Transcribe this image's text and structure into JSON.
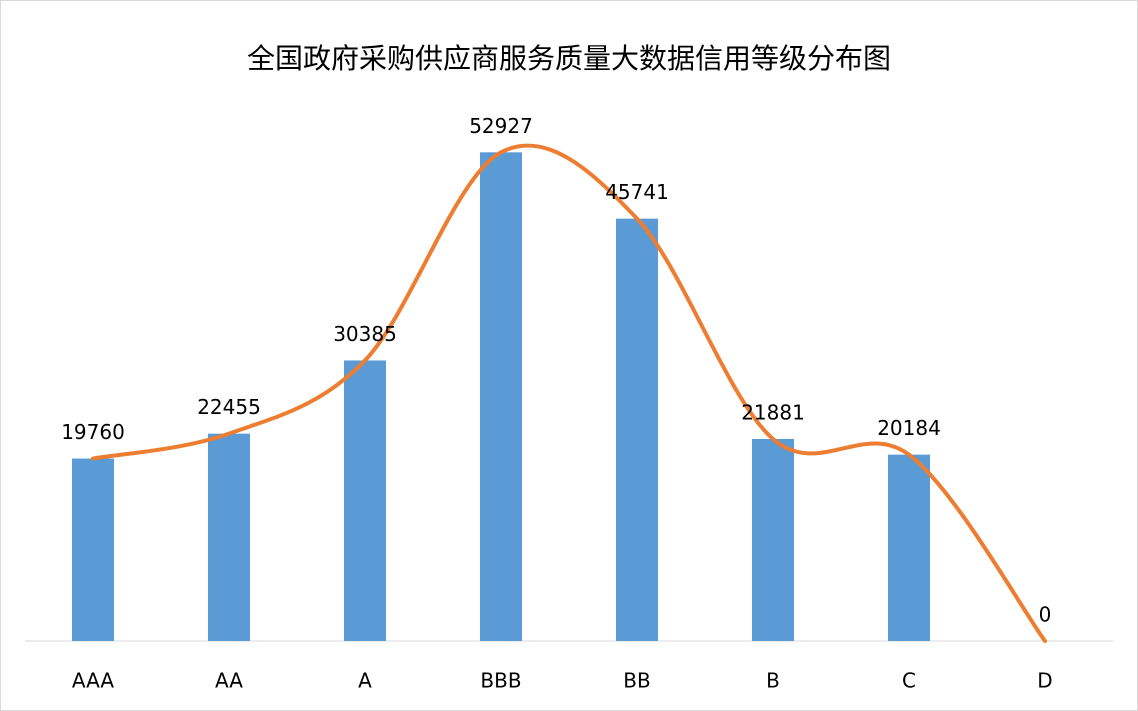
{
  "chart_data": {
    "type": "combo",
    "title": "全国政府采购供应商服务质量大数据信用等级分布图",
    "categories": [
      "AAA",
      "AA",
      "A",
      "BBB",
      "BB",
      "B",
      "C",
      "D"
    ],
    "values": [
      19760,
      22455,
      30385,
      52927,
      45741,
      21881,
      20184,
      0
    ],
    "bar_color": "#5b9bd5",
    "line_color": "#ed7d31",
    "smooth": true,
    "ylim": [
      0,
      60000
    ]
  }
}
